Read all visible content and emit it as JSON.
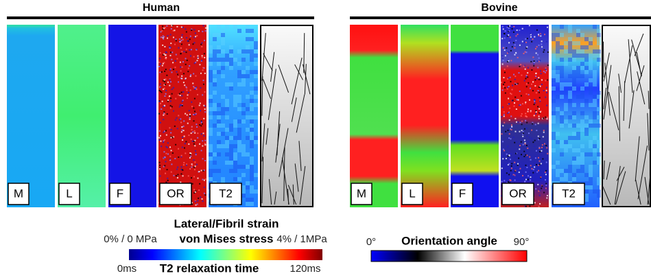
{
  "groups": [
    {
      "title": "Human",
      "panels": [
        "M",
        "L",
        "F",
        "OR",
        "T2"
      ]
    },
    {
      "title": "Bovine",
      "panels": [
        "M",
        "L",
        "F",
        "OR",
        "T2"
      ]
    }
  ],
  "strain_bar": {
    "title_1": "Lateral/Fibril strain",
    "title_2": "von Mises stress",
    "min": "0% / 0 MPa",
    "max": "4% / 1MPa",
    "t2_min": "0ms",
    "t2_title": "T2 relaxation time",
    "t2_max": "120ms"
  },
  "angle_bar": {
    "min": "0°",
    "title": "Orientation angle",
    "max": "90°"
  }
}
